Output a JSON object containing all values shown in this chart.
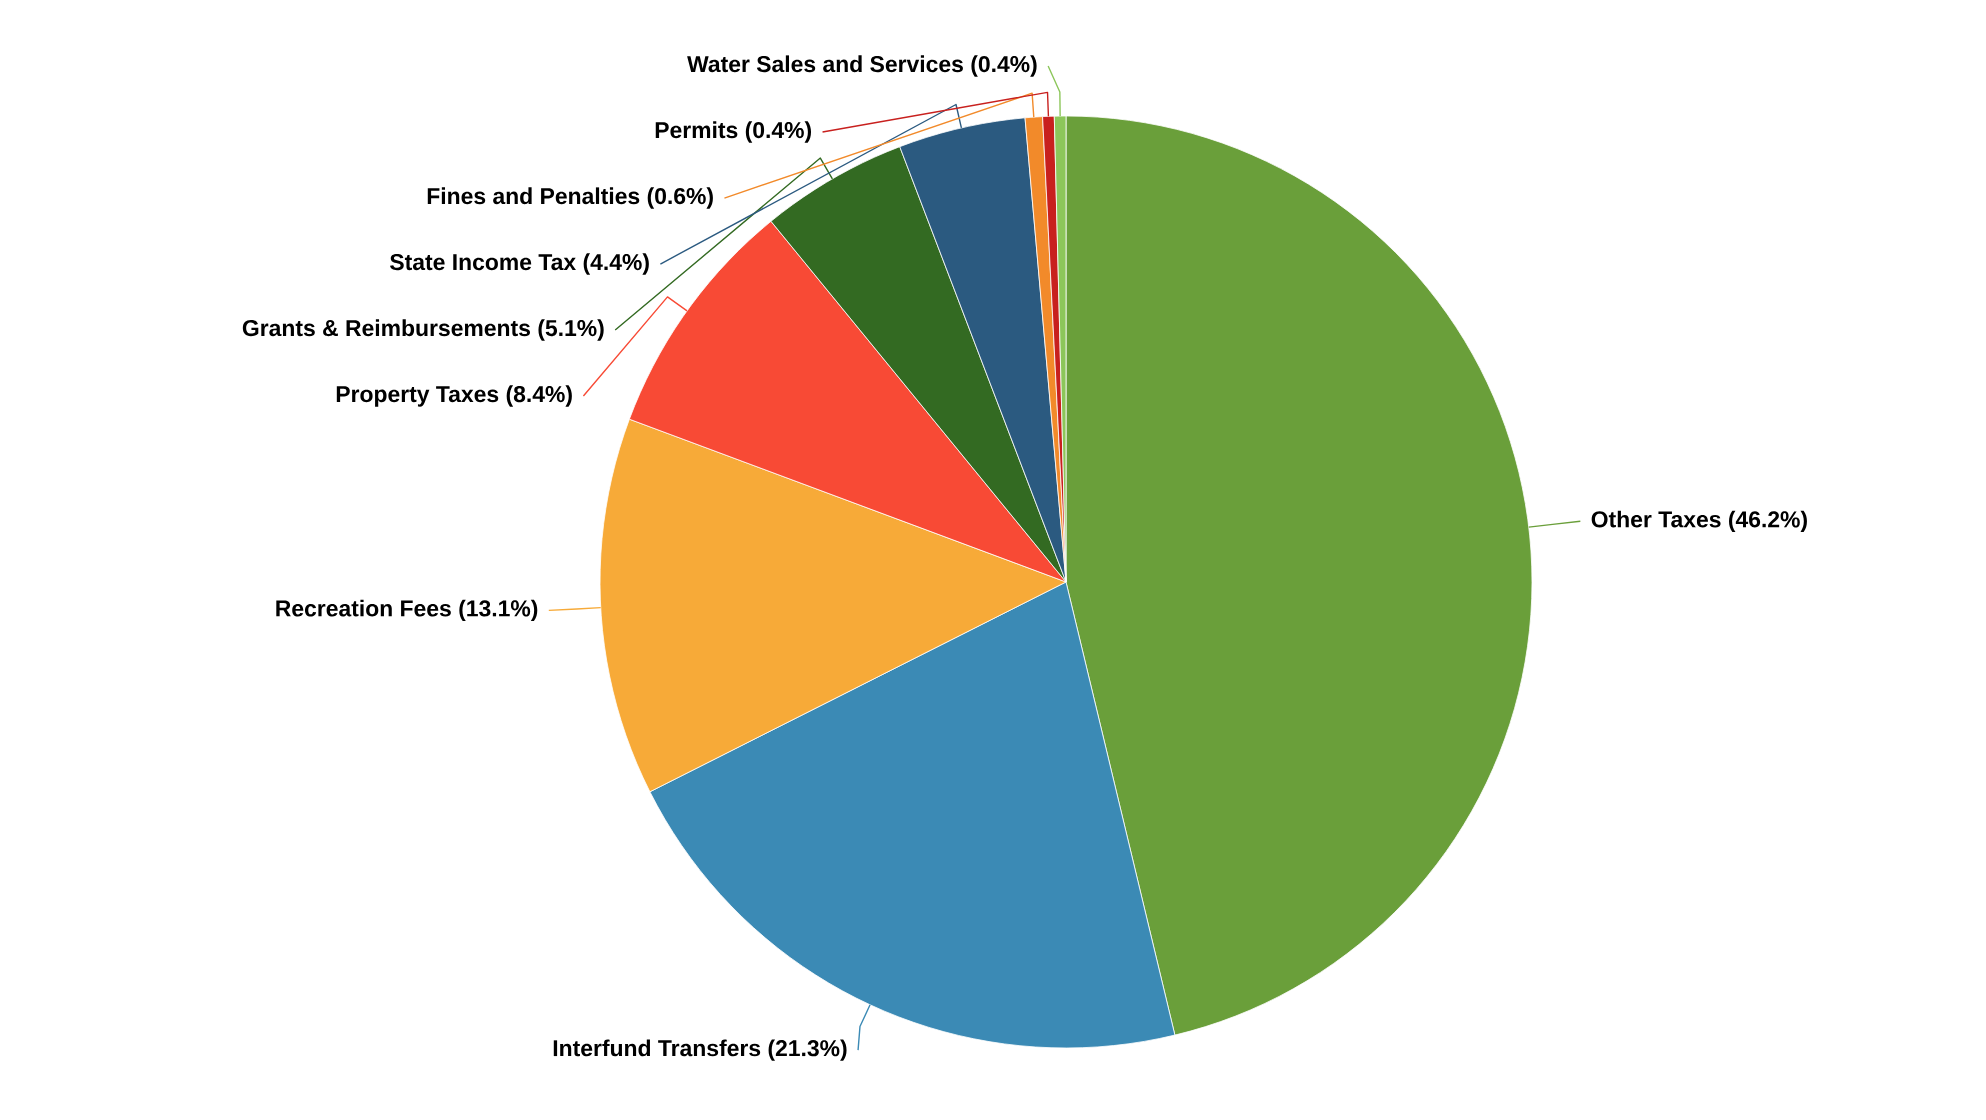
{
  "chart_data": {
    "type": "pie",
    "categories": [
      "Other Taxes",
      "Interfund Transfers",
      "Recreation Fees",
      "Property Taxes",
      "Grants & Reimbursements",
      "State Income Tax",
      "Fines and Penalties",
      "Permits",
      "Water Sales and Services"
    ],
    "values": [
      46.2,
      21.3,
      13.1,
      8.4,
      5.1,
      4.4,
      0.6,
      0.4,
      0.4
    ],
    "value_labels": [
      "(46.2%)",
      "(21.3%)",
      "(13.1%)",
      "(8.4%)",
      "(5.1%)",
      "(4.4%)",
      "(0.6%)",
      "(0.4%)",
      "(0.4%)"
    ],
    "colors": [
      "#6a9f3a",
      "#3b8ab5",
      "#f7aa38",
      "#f84a35",
      "#336a22",
      "#2b5a80",
      "#f28a2a",
      "#c8201e",
      "#8cc65a"
    ]
  }
}
